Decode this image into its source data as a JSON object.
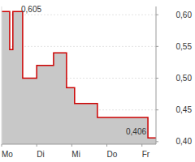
{
  "chart_data": {
    "type": "line",
    "line_style": "step",
    "grid": true,
    "x": [
      0,
      0.23,
      0.32,
      0.6,
      1.0,
      1.48,
      1.85,
      2.08,
      2.73,
      4.17,
      4.4
    ],
    "series": [
      {
        "name": null,
        "color": "#cc0000",
        "values": [
          0.605,
          0.545,
          0.605,
          0.5,
          0.52,
          0.54,
          0.485,
          0.46,
          0.438,
          0.406,
          0.406
        ]
      }
    ],
    "xlim": [
      0,
      4.4
    ],
    "xticks": [
      {
        "value": 0,
        "label": "Mo"
      },
      {
        "value": 1,
        "label": "Di"
      },
      {
        "value": 2,
        "label": "Mi"
      },
      {
        "value": 3,
        "label": "Do"
      },
      {
        "value": 4,
        "label": "Fr"
      }
    ],
    "ylim": [
      0.396,
      0.613
    ],
    "yticks": [
      {
        "value": 0.4,
        "label": "0,40"
      },
      {
        "value": 0.45,
        "label": "0,45"
      },
      {
        "value": 0.5,
        "label": "0,50"
      },
      {
        "value": 0.55,
        "label": "0,55"
      },
      {
        "value": 0.6,
        "label": "0,60"
      }
    ],
    "annotations": [
      {
        "text": "0,605",
        "x": 0,
        "y": 0.605
      },
      {
        "text": "0,406",
        "x": 4.17,
        "y": 0.406
      }
    ]
  }
}
